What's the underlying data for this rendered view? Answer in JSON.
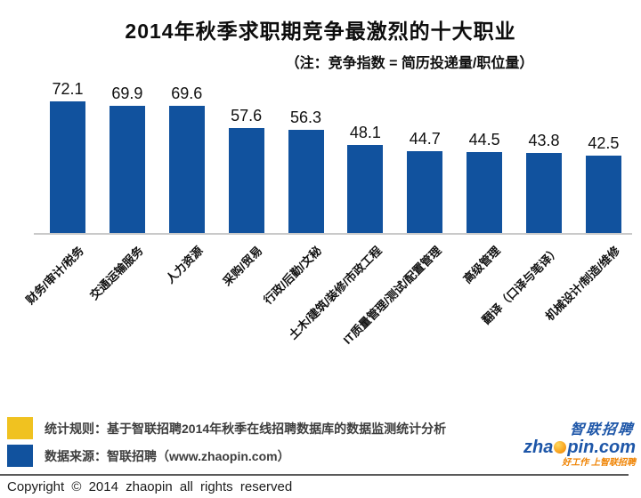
{
  "title": "2014年秋季求职期竞争最激烈的十大职业",
  "subtitle": "（注：竞争指数 = 简历投递量/职位量）",
  "chart_data": {
    "type": "bar",
    "title": "2014年秋季求职期竞争最激烈的十大职业",
    "note": "竞争指数 = 简历投递量/职位量",
    "categories": [
      "财务/审计/税务",
      "交通运输服务",
      "人力资源",
      "采购/贸易",
      "行政/后勤/文秘",
      "土木/建筑/装修/市政工程",
      "IT质量管理/测试/配置管理",
      "高级管理",
      "翻译（口译与笔译）",
      "机械设计/制造/维修"
    ],
    "values": [
      72.1,
      69.9,
      69.6,
      57.6,
      56.3,
      48.1,
      44.7,
      44.5,
      43.8,
      42.5
    ],
    "ylim": [
      0,
      80
    ],
    "grid": false,
    "value_labels": true,
    "bar_color": "#11529e",
    "axis_line_color": "#c9c9c9",
    "xlabel": "",
    "ylabel": ""
  },
  "legend": {
    "items": [
      {
        "color": "#f0c220",
        "label": "统计规则：基于智联招聘2014年秋季在线招聘数据库的数据监测统计分析"
      },
      {
        "color": "#11529e",
        "label": "数据来源：智联招聘（www.zhaopin.com）"
      }
    ]
  },
  "logo": {
    "cn": "智联招聘",
    "domain_prefix": "zha",
    "domain_suffix": "pin.com",
    "tagline": "好工作  上智联招聘"
  },
  "footer": {
    "copyright": "Copyright © 2014 zhaopin all rights reserved"
  }
}
